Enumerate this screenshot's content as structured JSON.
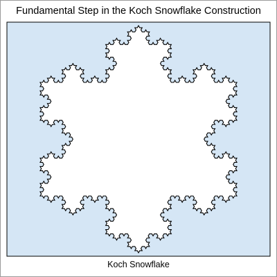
{
  "figure": {
    "title": "Fundamental Step in the Koch Snowflake Construction",
    "caption": "Koch Snowflake"
  },
  "colors": {
    "panel_background": "#d5e6f5",
    "panel_border": "#000000",
    "snowflake_fill": "#ffffff",
    "snowflake_stroke": "#000000",
    "outer_border": "#9a9a9a"
  },
  "snowflake": {
    "shape": "koch-snowflake",
    "iterations": 4,
    "orientation": "point-up",
    "base_shape": "equilateral-triangle"
  }
}
